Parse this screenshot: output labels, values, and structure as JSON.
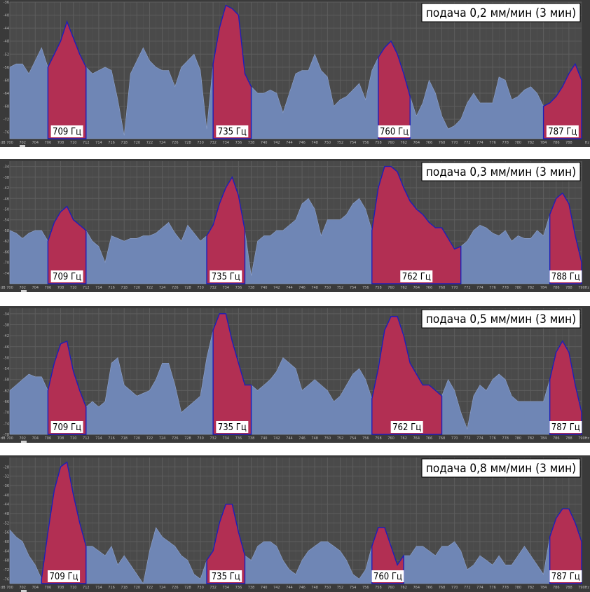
{
  "chart_data": [
    {
      "type": "area",
      "title": "подача 0,2 мм/мин (3 мин)",
      "x_unit": "Hz",
      "y_unit": "dB",
      "xlim": [
        700,
        790
      ],
      "ylim": [
        -78,
        -36
      ],
      "x_ticks": [
        700,
        702,
        704,
        706,
        708,
        710,
        712,
        714,
        716,
        718,
        720,
        722,
        724,
        726,
        728,
        730,
        732,
        734,
        736,
        738,
        740,
        742,
        744,
        746,
        748,
        750,
        752,
        754,
        756,
        758,
        760,
        762,
        764,
        766,
        768,
        770,
        772,
        774,
        776,
        778,
        780,
        782,
        784,
        786,
        788
      ],
      "y_ticks": [
        -36,
        -40,
        -44,
        -48,
        -52,
        -56,
        -60,
        -64,
        -68,
        -72,
        -76
      ],
      "x": [
        700,
        701,
        702,
        703,
        704,
        705,
        706,
        707,
        708,
        709,
        710,
        711,
        712,
        713,
        714,
        715,
        716,
        717,
        718,
        719,
        720,
        721,
        722,
        723,
        724,
        725,
        726,
        727,
        728,
        729,
        730,
        731,
        732,
        733,
        734,
        735,
        736,
        737,
        738,
        739,
        740,
        741,
        742,
        743,
        744,
        745,
        746,
        747,
        748,
        749,
        750,
        751,
        752,
        753,
        754,
        755,
        756,
        757,
        758,
        759,
        760,
        761,
        762,
        763,
        764,
        765,
        766,
        767,
        768,
        769,
        770,
        771,
        772,
        773,
        774,
        775,
        776,
        777,
        778,
        779,
        780,
        781,
        782,
        783,
        784,
        785,
        786,
        787,
        788,
        789,
        790
      ],
      "y": [
        -56,
        -55,
        -55,
        -58,
        -54,
        -50,
        -56,
        -52,
        -48,
        -42,
        -47,
        -52,
        -56,
        -58,
        -57,
        -56,
        -57,
        -66,
        -77,
        -58,
        -54,
        -50,
        -54,
        -56,
        -57,
        -57,
        -62,
        -56,
        -54,
        -52,
        -57,
        -75,
        -55,
        -44,
        -37,
        -38,
        -40,
        -58,
        -62,
        -64,
        -64,
        -63,
        -64,
        -70,
        -64,
        -58,
        -57,
        -57,
        -52,
        -57,
        -59,
        -68,
        -66,
        -65,
        -63,
        -61,
        -66,
        -57,
        -53,
        -50,
        -48,
        -52,
        -58,
        -65,
        -71,
        -67,
        -60,
        -64,
        -71,
        -75,
        -74,
        -72,
        -67,
        -64,
        -67,
        -67,
        -67,
        -59,
        -60,
        -66,
        -65,
        -63,
        -62,
        -64,
        -68,
        -67,
        -65,
        -62,
        -58,
        -55,
        -60
      ],
      "peaks": [
        {
          "label": "709 Гц",
          "from": 706,
          "to": 712
        },
        {
          "label": "735 Гц",
          "from": 732,
          "to": 738
        },
        {
          "label": "760 Гц",
          "from": 758,
          "to": 763
        },
        {
          "label": "787 Гц",
          "from": 784,
          "to": 790
        }
      ]
    },
    {
      "type": "area",
      "title": "подача 0,3 мм/мин (3 мин)",
      "x_unit": "Hz",
      "y_unit": "dB",
      "xlim": [
        700,
        790
      ],
      "ylim": [
        -78,
        -32
      ],
      "x_ticks": [
        700,
        702,
        704,
        706,
        708,
        710,
        712,
        714,
        716,
        718,
        720,
        722,
        724,
        726,
        728,
        730,
        732,
        734,
        736,
        738,
        740,
        742,
        744,
        746,
        748,
        750,
        752,
        754,
        756,
        758,
        760,
        762,
        764,
        766,
        768,
        770,
        772,
        774,
        776,
        778,
        780,
        782,
        784,
        786,
        788,
        790
      ],
      "y_ticks": [
        -34,
        -38,
        -42,
        -46,
        -50,
        -54,
        -58,
        -62,
        -66,
        -70,
        -74
      ],
      "x": [
        700,
        701,
        702,
        703,
        704,
        705,
        706,
        707,
        708,
        709,
        710,
        711,
        712,
        713,
        714,
        715,
        716,
        717,
        718,
        719,
        720,
        721,
        722,
        723,
        724,
        725,
        726,
        727,
        728,
        729,
        730,
        731,
        732,
        733,
        734,
        735,
        736,
        737,
        738,
        739,
        740,
        741,
        742,
        743,
        744,
        745,
        746,
        747,
        748,
        749,
        750,
        751,
        752,
        753,
        754,
        755,
        756,
        757,
        758,
        759,
        760,
        761,
        762,
        763,
        764,
        765,
        766,
        767,
        768,
        769,
        770,
        771,
        772,
        773,
        774,
        775,
        776,
        777,
        778,
        779,
        780,
        781,
        782,
        783,
        784,
        785,
        786,
        787,
        788,
        789,
        790
      ],
      "y": [
        -58,
        -59,
        -61,
        -59,
        -58,
        -58,
        -62,
        -55,
        -51,
        -49,
        -54,
        -56,
        -58,
        -62,
        -64,
        -70,
        -60,
        -61,
        -62,
        -61,
        -61,
        -60,
        -60,
        -59,
        -57,
        -55,
        -59,
        -62,
        -56,
        -59,
        -62,
        -60,
        -56,
        -48,
        -42,
        -38,
        -45,
        -58,
        -75,
        -62,
        -60,
        -60,
        -58,
        -58,
        -56,
        -54,
        -48,
        -46,
        -50,
        -60,
        -54,
        -54,
        -54,
        -52,
        -48,
        -46,
        -50,
        -58,
        -42,
        -34,
        -34,
        -36,
        -42,
        -47,
        -50,
        -52,
        -55,
        -57,
        -57,
        -61,
        -65,
        -64,
        -62,
        -58,
        -56,
        -57,
        -59,
        -60,
        -58,
        -62,
        -60,
        -61,
        -61,
        -58,
        -60,
        -52,
        -46,
        -44,
        -48,
        -60,
        -70
      ],
      "peaks": [
        {
          "label": "709 Гц",
          "from": 706,
          "to": 712
        },
        {
          "label": "735 Гц",
          "from": 731,
          "to": 737
        },
        {
          "label": "762 Гц",
          "from": 757,
          "to": 771
        },
        {
          "label": "788 Гц",
          "from": 785,
          "to": 790
        }
      ]
    },
    {
      "type": "area",
      "title": "подача 0,5 мм/мин (3 мин)",
      "x_unit": "Hz",
      "y_unit": "dB",
      "xlim": [
        700,
        790
      ],
      "ylim": [
        -78,
        -32
      ],
      "x_ticks": [
        700,
        702,
        704,
        706,
        708,
        710,
        712,
        714,
        716,
        718,
        720,
        722,
        724,
        726,
        728,
        730,
        732,
        734,
        736,
        738,
        740,
        742,
        744,
        746,
        748,
        750,
        752,
        754,
        756,
        758,
        760,
        762,
        764,
        766,
        768,
        770,
        772,
        774,
        776,
        778,
        780,
        782,
        784,
        786,
        788,
        790
      ],
      "y_ticks": [
        -34,
        -38,
        -42,
        -46,
        -50,
        -54,
        -58,
        -62,
        -66,
        -70,
        -74,
        -78
      ],
      "x": [
        700,
        701,
        702,
        703,
        704,
        705,
        706,
        707,
        708,
        709,
        710,
        711,
        712,
        713,
        714,
        715,
        716,
        717,
        718,
        719,
        720,
        721,
        722,
        723,
        724,
        725,
        726,
        727,
        728,
        729,
        730,
        731,
        732,
        733,
        734,
        735,
        736,
        737,
        738,
        739,
        740,
        741,
        742,
        743,
        744,
        745,
        746,
        747,
        748,
        749,
        750,
        751,
        752,
        753,
        754,
        755,
        756,
        757,
        758,
        759,
        760,
        761,
        762,
        763,
        764,
        765,
        766,
        767,
        768,
        769,
        770,
        771,
        772,
        773,
        774,
        775,
        776,
        777,
        778,
        779,
        780,
        781,
        782,
        783,
        784,
        785,
        786,
        787,
        788,
        789,
        790
      ],
      "y": [
        -62,
        -60,
        -58,
        -56,
        -57,
        -57,
        -62,
        -52,
        -45,
        -44,
        -55,
        -62,
        -68,
        -66,
        -68,
        -66,
        -52,
        -50,
        -60,
        -62,
        -64,
        -63,
        -62,
        -58,
        -52,
        -52,
        -60,
        -70,
        -68,
        -66,
        -64,
        -50,
        -40,
        -34,
        -34,
        -44,
        -52,
        -60,
        -60,
        -62,
        -60,
        -58,
        -55,
        -50,
        -52,
        -54,
        -62,
        -60,
        -58,
        -60,
        -62,
        -66,
        -64,
        -60,
        -56,
        -54,
        -58,
        -65,
        -54,
        -40,
        -35,
        -35,
        -42,
        -52,
        -56,
        -60,
        -60,
        -62,
        -64,
        -58,
        -62,
        -70,
        -76,
        -64,
        -60,
        -62,
        -58,
        -56,
        -58,
        -64,
        -66,
        -66,
        -66,
        -66,
        -66,
        -58,
        -48,
        -44,
        -48,
        -60,
        -70
      ],
      "peaks": [
        {
          "label": "709 Гц",
          "from": 706,
          "to": 712
        },
        {
          "label": "735 Гц",
          "from": 732,
          "to": 738
        },
        {
          "label": "762 Гц",
          "from": 757,
          "to": 768
        },
        {
          "label": "787 Гц",
          "from": 785,
          "to": 790
        }
      ]
    },
    {
      "type": "area",
      "title": "подача 0,8 мм/мин (3 мин)",
      "x_unit": "Hz",
      "y_unit": "dB",
      "xlim": [
        700,
        790
      ],
      "ylim": [
        -78,
        -24
      ],
      "x_ticks": [
        700,
        702,
        704,
        706,
        708,
        710,
        712,
        714,
        716,
        718,
        720,
        722,
        724,
        726,
        728,
        730,
        732,
        734,
        736,
        738,
        740,
        742,
        744,
        746,
        748,
        750,
        752,
        754,
        756,
        758,
        760,
        762,
        764,
        766,
        768,
        770,
        772,
        774,
        776,
        778,
        780,
        782,
        784,
        786,
        788,
        790
      ],
      "y_ticks": [
        -28,
        -32,
        -36,
        -40,
        -44,
        -48,
        -52,
        -56,
        -60,
        -64,
        -68,
        -72,
        -76
      ],
      "x": [
        700,
        701,
        702,
        703,
        704,
        705,
        706,
        707,
        708,
        709,
        710,
        711,
        712,
        713,
        714,
        715,
        716,
        717,
        718,
        719,
        720,
        721,
        722,
        723,
        724,
        725,
        726,
        727,
        728,
        729,
        730,
        731,
        732,
        733,
        734,
        735,
        736,
        737,
        738,
        739,
        740,
        741,
        742,
        743,
        744,
        745,
        746,
        747,
        748,
        749,
        750,
        751,
        752,
        753,
        754,
        755,
        756,
        757,
        758,
        759,
        760,
        761,
        762,
        763,
        764,
        765,
        766,
        767,
        768,
        769,
        770,
        771,
        772,
        773,
        774,
        775,
        776,
        777,
        778,
        779,
        780,
        781,
        782,
        783,
        784,
        785,
        786,
        787,
        788,
        789,
        790
      ],
      "y": [
        -55,
        -58,
        -60,
        -66,
        -70,
        -76,
        -56,
        -38,
        -28,
        -26,
        -40,
        -52,
        -62,
        -62,
        -64,
        -66,
        -62,
        -70,
        -66,
        -70,
        -74,
        -78,
        -64,
        -54,
        -58,
        -60,
        -62,
        -66,
        -68,
        -74,
        -76,
        -68,
        -64,
        -52,
        -44,
        -44,
        -56,
        -66,
        -68,
        -62,
        -60,
        -60,
        -62,
        -68,
        -72,
        -74,
        -68,
        -64,
        -62,
        -60,
        -60,
        -62,
        -64,
        -68,
        -74,
        -76,
        -72,
        -62,
        -54,
        -54,
        -62,
        -70,
        -66,
        -66,
        -62,
        -62,
        -64,
        -66,
        -62,
        -62,
        -60,
        -64,
        -72,
        -70,
        -66,
        -68,
        -70,
        -66,
        -70,
        -70,
        -66,
        -62,
        -66,
        -70,
        -74,
        -58,
        -50,
        -46,
        -46,
        -52,
        -60
      ],
      "peaks": [
        {
          "label": "709 Гц",
          "from": 705,
          "to": 712
        },
        {
          "label": "735 Гц",
          "from": 731,
          "to": 737
        },
        {
          "label": "760 Гц",
          "from": 757,
          "to": 762
        },
        {
          "label": "787 Гц",
          "from": 785,
          "to": 790
        }
      ]
    }
  ]
}
